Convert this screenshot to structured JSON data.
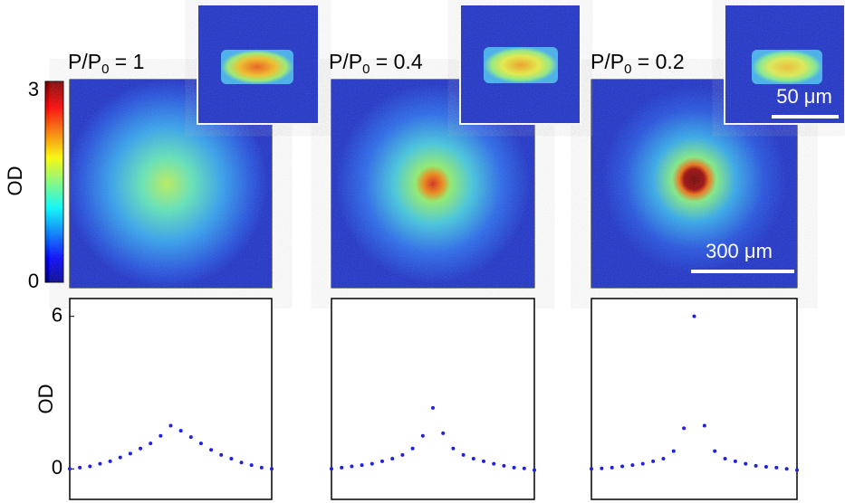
{
  "colorbar": {
    "label": "OD",
    "max": 3,
    "min": 0
  },
  "panels": [
    {
      "label": {
        "prefix": "P/P",
        "sub": "0",
        "suffix": " = 1"
      }
    },
    {
      "label": {
        "prefix": "P/P",
        "sub": "0",
        "suffix": " = 0.4"
      }
    },
    {
      "label": {
        "prefix": "P/P",
        "sub": "0",
        "suffix": " = 0.2"
      }
    }
  ],
  "scale_bars": {
    "large": "300 μm",
    "small": "50 μm"
  },
  "chart_data": [
    {
      "type": "scatter",
      "ylabel": "OD",
      "xlim": [
        0,
        1
      ],
      "ylim": [
        -1.2,
        6.7
      ],
      "yticks": [
        0,
        6
      ],
      "color": "#1f1fe6",
      "x": [
        0,
        0.05,
        0.1,
        0.15,
        0.2,
        0.25,
        0.3,
        0.35,
        0.4,
        0.45,
        0.5,
        0.55,
        0.6,
        0.65,
        0.7,
        0.75,
        0.8,
        0.85,
        0.9,
        0.95,
        1
      ],
      "values": [
        0.0,
        0.05,
        0.1,
        0.2,
        0.3,
        0.45,
        0.6,
        0.8,
        1.0,
        1.3,
        1.7,
        1.5,
        1.25,
        1.0,
        0.75,
        0.55,
        0.4,
        0.25,
        0.15,
        0.05,
        0.0
      ]
    },
    {
      "type": "scatter",
      "xlim": [
        0,
        1
      ],
      "ylim": [
        -1.2,
        6.7
      ],
      "color": "#1f1fe6",
      "x": [
        0,
        0.05,
        0.1,
        0.15,
        0.2,
        0.25,
        0.3,
        0.35,
        0.4,
        0.45,
        0.5,
        0.55,
        0.6,
        0.65,
        0.7,
        0.75,
        0.8,
        0.85,
        0.9,
        0.95,
        1
      ],
      "values": [
        0.0,
        0.05,
        0.1,
        0.15,
        0.2,
        0.3,
        0.4,
        0.55,
        0.8,
        1.3,
        2.4,
        1.4,
        0.8,
        0.55,
        0.4,
        0.3,
        0.2,
        0.12,
        0.05,
        0.02,
        -0.05
      ]
    },
    {
      "type": "scatter",
      "xlim": [
        0,
        1
      ],
      "ylim": [
        -1.2,
        6.7
      ],
      "color": "#1f1fe6",
      "x": [
        0,
        0.05,
        0.1,
        0.15,
        0.2,
        0.25,
        0.3,
        0.35,
        0.4,
        0.45,
        0.5,
        0.55,
        0.6,
        0.65,
        0.7,
        0.75,
        0.8,
        0.85,
        0.9,
        0.95,
        1
      ],
      "values": [
        0.0,
        0.02,
        0.05,
        0.1,
        0.15,
        0.2,
        0.3,
        0.4,
        0.7,
        1.6,
        6.0,
        1.7,
        0.7,
        0.4,
        0.3,
        0.2,
        0.12,
        0.08,
        0.05,
        0.0,
        -0.05
      ]
    }
  ]
}
